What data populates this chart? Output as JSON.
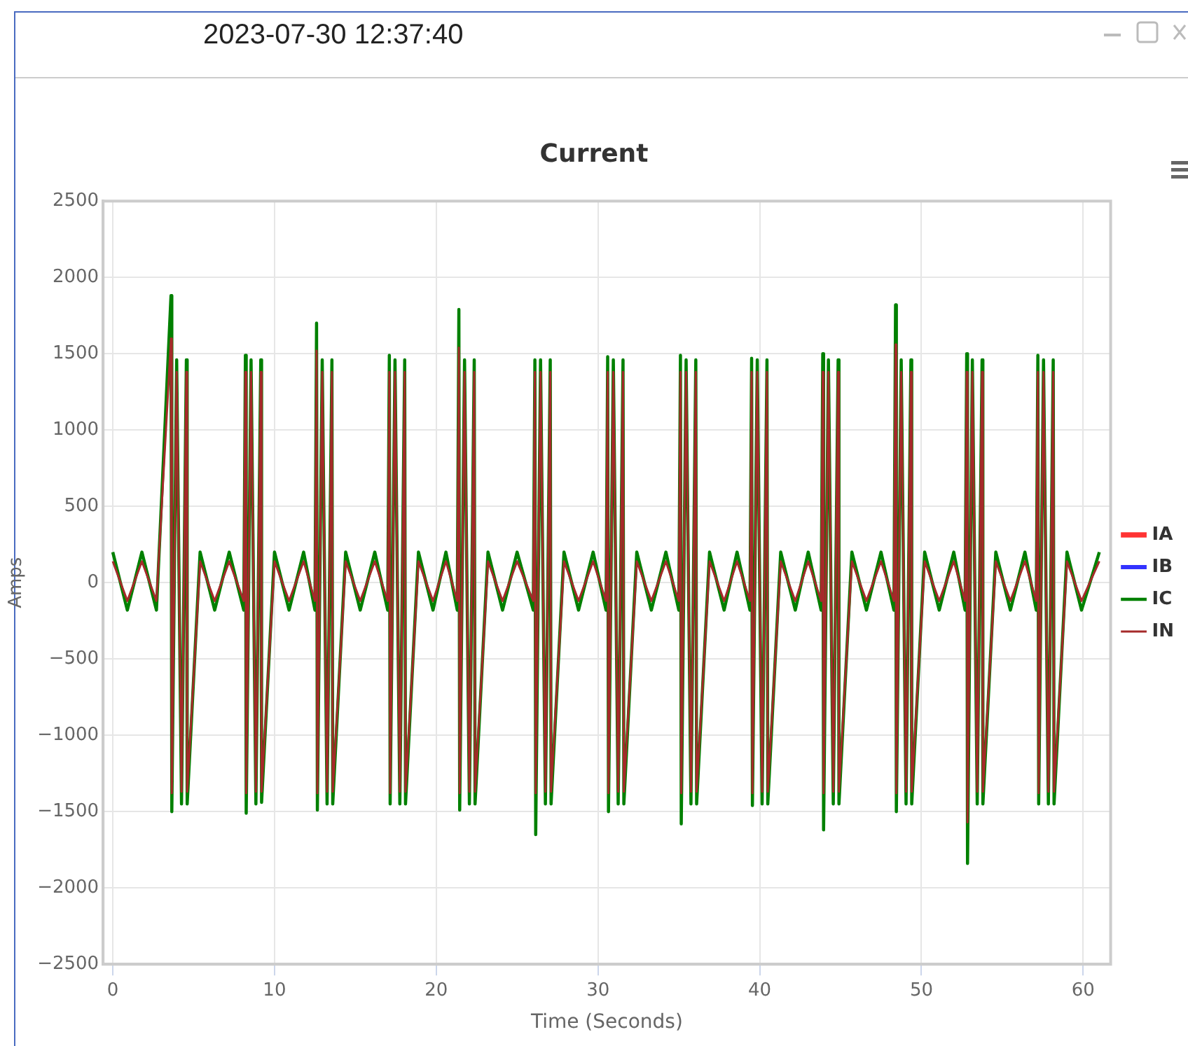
{
  "chart_data": {
    "type": "line",
    "title": "Current",
    "xlabel": "Time (Seconds)",
    "ylabel": "Amps",
    "annotations": [
      "2023-07-30 12:37:40"
    ],
    "x": [
      0,
      0.9,
      1.8,
      2.7,
      3.6,
      3.65,
      3.95,
      4.25,
      4.55,
      4.6,
      5.4,
      6.3,
      7.2,
      8.1,
      8.2,
      8.25,
      8.55,
      8.85,
      9.15,
      9.2,
      10.0,
      10.9,
      11.8,
      12.5,
      12.6,
      12.65,
      12.95,
      13.25,
      13.55,
      13.6,
      14.4,
      15.3,
      16.2,
      17.0,
      17.1,
      17.15,
      17.45,
      17.75,
      18.05,
      18.1,
      18.9,
      19.8,
      20.6,
      21.3,
      21.4,
      21.45,
      21.75,
      22.05,
      22.35,
      22.4,
      23.2,
      24.1,
      25.0,
      26.0,
      26.1,
      26.15,
      26.45,
      26.75,
      27.05,
      27.1,
      27.9,
      28.8,
      29.7,
      30.5,
      30.6,
      30.65,
      30.95,
      31.25,
      31.55,
      31.6,
      32.4,
      33.3,
      34.2,
      35.0,
      35.1,
      35.15,
      35.45,
      35.75,
      36.05,
      36.1,
      36.9,
      37.8,
      38.6,
      39.4,
      39.5,
      39.55,
      39.85,
      40.15,
      40.45,
      40.5,
      41.3,
      42.2,
      43.0,
      43.8,
      43.9,
      43.95,
      44.25,
      44.55,
      44.85,
      44.9,
      45.7,
      46.6,
      47.5,
      48.3,
      48.4,
      48.45,
      48.75,
      49.05,
      49.35,
      49.4,
      50.2,
      51.1,
      52.0,
      52.7,
      52.8,
      52.85,
      53.15,
      53.45,
      53.75,
      53.8,
      54.6,
      55.5,
      56.4,
      57.1,
      57.2,
      57.25,
      57.55,
      57.85,
      58.15,
      58.2,
      59.0,
      59.9,
      61.0
    ],
    "series": [
      {
        "name": "IA",
        "color": "#ff3333",
        "values": [
          null,
          null,
          null,
          null,
          null,
          null,
          null,
          null,
          null,
          null,
          null,
          null,
          null,
          null,
          null,
          null,
          null,
          null,
          null,
          null,
          null,
          null,
          null,
          null,
          null,
          null,
          null,
          null,
          null,
          null,
          null,
          null,
          null,
          null,
          null,
          null,
          null,
          null,
          null,
          null,
          null,
          null,
          null,
          null,
          null,
          null,
          null,
          null,
          null,
          null,
          null,
          null,
          null,
          null,
          null,
          null,
          null,
          null,
          null,
          null,
          null,
          null,
          null,
          null,
          null,
          null,
          null,
          null,
          null,
          null,
          null,
          null,
          null,
          null,
          null,
          null,
          null,
          null,
          null,
          null,
          null,
          null,
          null,
          null,
          null,
          null,
          null,
          null,
          null,
          null,
          null,
          null,
          null,
          null,
          null,
          null,
          null,
          null,
          null,
          null,
          null,
          null,
          null,
          null,
          null,
          null,
          null,
          null,
          null,
          null,
          null,
          null,
          null,
          null,
          null,
          null,
          null,
          null,
          null,
          null,
          null,
          null,
          null,
          null,
          null,
          null,
          null,
          null,
          null,
          null,
          null,
          null,
          null
        ]
      },
      {
        "name": "IB",
        "color": "#3333ff",
        "values": [
          null,
          null,
          null,
          null,
          null,
          null,
          null,
          null,
          null,
          null,
          null,
          null,
          null,
          null,
          null,
          null,
          null,
          null,
          null,
          null,
          null,
          null,
          null,
          null,
          null,
          null,
          null,
          null,
          null,
          null,
          null,
          null,
          null,
          null,
          null,
          null,
          null,
          null,
          null,
          null,
          null,
          null,
          null,
          null,
          null,
          null,
          null,
          null,
          null,
          null,
          null,
          null,
          null,
          null,
          null,
          null,
          null,
          null,
          null,
          null,
          null,
          null,
          null,
          null,
          null,
          null,
          null,
          null,
          null,
          null,
          null,
          null,
          null,
          null,
          null,
          null,
          null,
          null,
          null,
          null,
          null,
          null,
          null,
          null,
          null,
          null,
          null,
          null,
          null,
          null,
          null,
          null,
          null,
          null,
          null,
          null,
          null,
          null,
          null,
          null,
          null,
          null,
          null,
          null,
          null,
          null,
          null,
          null,
          null,
          null,
          null,
          null,
          null,
          null,
          null,
          null,
          null,
          null,
          null,
          null,
          null,
          null,
          null,
          null,
          null,
          null,
          null,
          null,
          null,
          null,
          null,
          null,
          null
        ]
      },
      {
        "name": "IC",
        "color": "#008000",
        "values": [
          200,
          -180,
          200,
          -180,
          1880,
          -1500,
          1460,
          -1450,
          1460,
          -1450,
          200,
          -180,
          200,
          -180,
          1490,
          -1510,
          1460,
          -1450,
          1460,
          -1440,
          200,
          -180,
          200,
          -180,
          1700,
          -1490,
          1460,
          -1450,
          1460,
          -1450,
          200,
          -180,
          200,
          -180,
          1490,
          -1450,
          1460,
          -1450,
          1460,
          -1450,
          200,
          -180,
          200,
          -180,
          1790,
          -1490,
          1460,
          -1450,
          1460,
          -1450,
          200,
          -180,
          200,
          -180,
          1460,
          -1650,
          1460,
          -1450,
          1460,
          -1450,
          200,
          -180,
          200,
          -180,
          1480,
          -1500,
          1460,
          -1450,
          1460,
          -1450,
          200,
          -180,
          200,
          -180,
          1490,
          -1580,
          1460,
          -1450,
          1460,
          -1450,
          200,
          -180,
          200,
          -180,
          1470,
          -1460,
          1460,
          -1450,
          1460,
          -1450,
          200,
          -180,
          200,
          -180,
          1500,
          -1620,
          1460,
          -1450,
          1460,
          -1450,
          200,
          -180,
          200,
          -180,
          1820,
          -1500,
          1460,
          -1450,
          1460,
          -1450,
          200,
          -180,
          200,
          -180,
          1500,
          -1840,
          1460,
          -1450,
          1460,
          -1450,
          200,
          -180,
          200,
          -180,
          1490,
          -1450,
          1460,
          -1450,
          1460,
          -1450,
          200,
          -180,
          200
        ]
      },
      {
        "name": "IN",
        "color": "#a52a2a",
        "values": [
          140,
          -120,
          140,
          -120,
          1600,
          -1380,
          1380,
          -1370,
          1380,
          -1370,
          140,
          -120,
          140,
          -120,
          1380,
          -1380,
          1380,
          -1370,
          1380,
          -1370,
          140,
          -120,
          140,
          -120,
          1520,
          -1380,
          1380,
          -1370,
          1380,
          -1370,
          140,
          -120,
          140,
          -120,
          1380,
          -1380,
          1380,
          -1370,
          1380,
          -1370,
          140,
          -120,
          140,
          -120,
          1540,
          -1380,
          1380,
          -1370,
          1380,
          -1370,
          140,
          -120,
          140,
          -120,
          1380,
          -1380,
          1380,
          -1370,
          1380,
          -1370,
          140,
          -120,
          140,
          -120,
          1380,
          -1380,
          1380,
          -1370,
          1380,
          -1370,
          140,
          -120,
          140,
          -120,
          1380,
          -1380,
          1380,
          -1370,
          1380,
          -1370,
          140,
          -120,
          140,
          -120,
          1380,
          -1380,
          1380,
          -1370,
          1380,
          -1370,
          140,
          -120,
          140,
          -120,
          1380,
          -1380,
          1380,
          -1370,
          1380,
          -1370,
          140,
          -120,
          140,
          -120,
          1560,
          -1380,
          1380,
          -1370,
          1380,
          -1370,
          140,
          -120,
          140,
          -120,
          1380,
          -1570,
          1380,
          -1370,
          1380,
          -1370,
          140,
          -120,
          140,
          -120,
          1380,
          -1380,
          1380,
          -1370,
          1380,
          -1370,
          140,
          -120,
          140
        ]
      }
    ],
    "xlim": [
      -0.6,
      61.7
    ],
    "xticks": [
      0,
      10,
      20,
      30,
      40,
      50,
      60
    ],
    "ylim": [
      -2500,
      2500
    ],
    "yticks": [
      {
        "value": -2500,
        "label": "−2500"
      },
      {
        "value": -2000,
        "label": "−2000"
      },
      {
        "value": -1500,
        "label": "−1500"
      },
      {
        "value": -1000,
        "label": "−1000"
      },
      {
        "value": -500,
        "label": "−500"
      },
      0,
      500,
      1000,
      1500,
      2000,
      2500
    ],
    "grid": true,
    "legend": "right",
    "marker": "none",
    "line_style": "solid"
  }
}
